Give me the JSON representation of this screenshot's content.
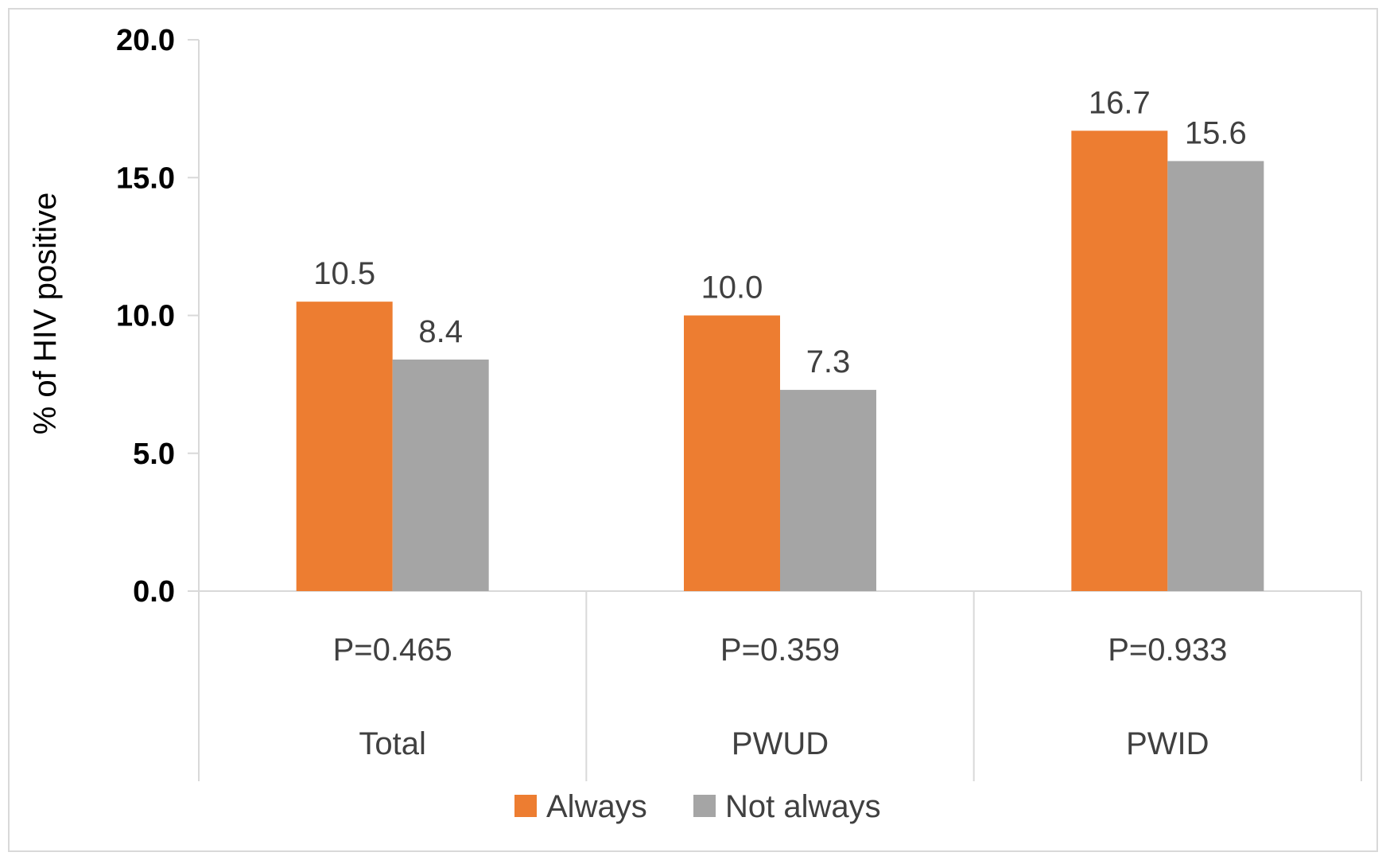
{
  "chart_data": {
    "type": "bar",
    "title": "",
    "ylabel": "% of HIV positive",
    "xlabel": "",
    "ylim": [
      0,
      20
    ],
    "yticks": [
      "0.0",
      "5.0",
      "10.0",
      "15.0",
      "20.0"
    ],
    "ytick_values": [
      0,
      5,
      10,
      15,
      20
    ],
    "categories": [
      "Total",
      "PWUD",
      "PWID"
    ],
    "p_values": [
      "P=0.465",
      "P=0.359",
      "P=0.933"
    ],
    "series": [
      {
        "name": "Always",
        "color": "#ED7D31",
        "values": [
          10.5,
          10.0,
          16.7
        ],
        "labels": [
          "10.5",
          "10.0",
          "16.7"
        ]
      },
      {
        "name": "Not always",
        "color": "#A5A5A5",
        "values": [
          8.4,
          7.3,
          15.6
        ],
        "labels": [
          "8.4",
          "7.3",
          "15.6"
        ]
      }
    ],
    "grid": false,
    "legend_position": "bottom"
  }
}
